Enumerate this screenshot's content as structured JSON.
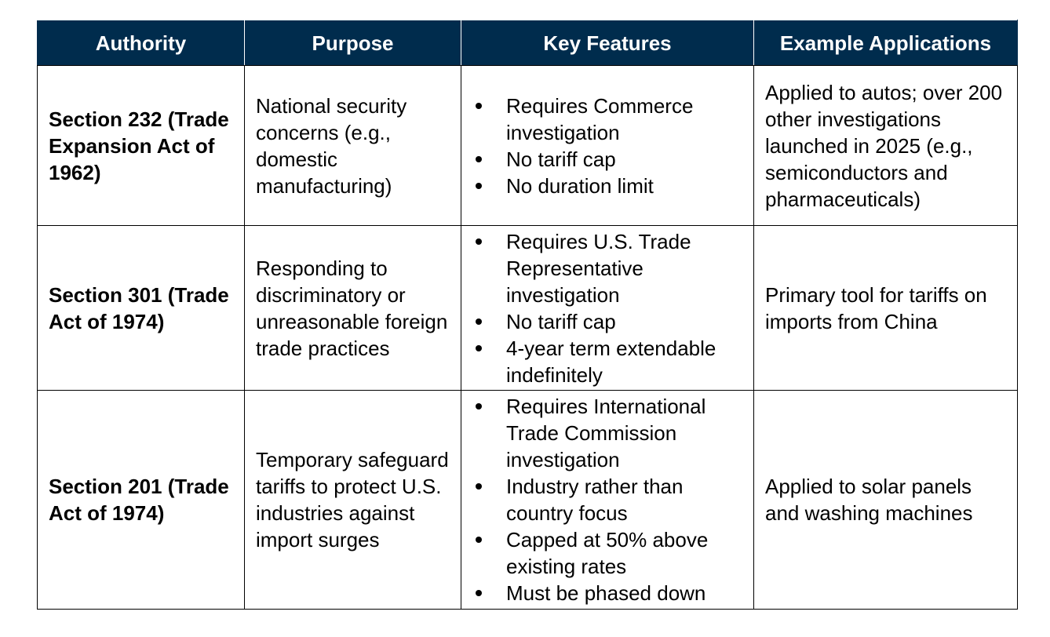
{
  "table": {
    "headers": [
      "Authority",
      "Purpose",
      "Key Features",
      "Example Applications"
    ],
    "rows": [
      {
        "authority": "Section 232 (Trade Expansion Act of 1962)",
        "purpose": "National security concerns (e.g., domestic manufacturing)",
        "features": [
          "Requires Commerce investigation",
          "No tariff cap",
          "No duration limit"
        ],
        "applications": "Applied to autos; over 200 other investigations launched in 2025 (e.g., semiconductors and pharmaceuticals)"
      },
      {
        "authority": "Section 301 (Trade Act of 1974)",
        "purpose": "Responding to discriminatory or unreasonable foreign trade practices",
        "features": [
          "Requires U.S. Trade Representative investigation",
          "No tariff cap",
          "4-year term extendable indefinitely"
        ],
        "applications": "Primary tool for tariffs on imports from China"
      },
      {
        "authority": "Section 201 (Trade Act of 1974)",
        "purpose": "Temporary safeguard tariffs to protect U.S. industries against import surges",
        "features": [
          "Requires International Trade Commission investigation",
          "Industry rather than country focus",
          "Capped at 50% above existing rates",
          "Must be phased down"
        ],
        "applications": "Applied to solar panels and washing machines"
      }
    ]
  }
}
